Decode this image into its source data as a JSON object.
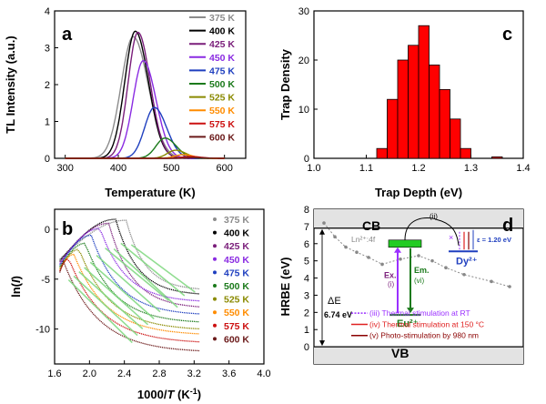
{
  "chart_data": [
    {
      "panel": "a",
      "type": "line",
      "xlabel": "Temperature (K)",
      "ylabel": "TL Intensity (a.u.)",
      "xlim": [
        280,
        640
      ],
      "ylim": [
        0,
        4
      ],
      "xticks": [
        300,
        400,
        500,
        600
      ],
      "yticks": [
        0,
        1,
        2,
        3,
        4
      ],
      "legend_position": "top-right",
      "series": [
        {
          "name": "375 K",
          "color": "#8c8c8c",
          "peak_x": 428,
          "peak_y": 3.3,
          "width": 32,
          "start_x": 375
        },
        {
          "name": "400 K",
          "color": "#000000",
          "peak_x": 432,
          "peak_y": 3.45,
          "width": 28,
          "start_x": 400
        },
        {
          "name": "425 K",
          "color": "#7a1e7a",
          "peak_x": 437,
          "peak_y": 3.42,
          "width": 26,
          "start_x": 425
        },
        {
          "name": "450 K",
          "color": "#8a2be2",
          "peak_x": 447,
          "peak_y": 2.65,
          "width": 27,
          "start_x": 450
        },
        {
          "name": "475 K",
          "color": "#1f3fbf",
          "peak_x": 468,
          "peak_y": 1.38,
          "width": 26,
          "start_x": 475
        },
        {
          "name": "500 K",
          "color": "#1b7a1b",
          "peak_x": 488,
          "peak_y": 0.55,
          "width": 24,
          "start_x": 500
        },
        {
          "name": "525 K",
          "color": "#8a8a00",
          "peak_x": 508,
          "peak_y": 0.22,
          "width": 22,
          "start_x": 525
        },
        {
          "name": "550 K",
          "color": "#ff8c00",
          "peak_x": 522,
          "peak_y": 0.1,
          "width": 22,
          "start_x": 550
        },
        {
          "name": "575 K",
          "color": "#cc1111",
          "peak_x": 535,
          "peak_y": 0.05,
          "width": 22,
          "start_x": 575
        },
        {
          "name": "600 K",
          "color": "#6b1a1a",
          "peak_x": 545,
          "peak_y": 0.02,
          "width": 20,
          "start_x": 600
        }
      ]
    },
    {
      "panel": "c",
      "type": "bar",
      "xlabel": "Trap Depth (eV)",
      "ylabel": "Trap Density",
      "xlim": [
        1.0,
        1.4
      ],
      "ylim": [
        0,
        30
      ],
      "xticks": [
        1.0,
        1.1,
        1.2,
        1.3,
        1.4
      ],
      "yticks": [
        0,
        10,
        20,
        30
      ],
      "bar_color": "#ff0000",
      "bin_width": 0.02,
      "x": [
        1.13,
        1.15,
        1.17,
        1.19,
        1.21,
        1.23,
        1.25,
        1.27,
        1.29,
        1.35
      ],
      "values": [
        2,
        12,
        20,
        23,
        27,
        19,
        14,
        8,
        2,
        0.3
      ]
    },
    {
      "panel": "b",
      "type": "scatter",
      "xlabel": "1000/T (K⁻¹)",
      "ylabel": "ln(I)",
      "xlim": [
        1.6,
        4.0
      ],
      "ylim": [
        -13.5,
        2
      ],
      "xticks": [
        1.6,
        2.0,
        2.4,
        2.8,
        3.2,
        3.6,
        4.0
      ],
      "yticks": [
        -10,
        -5,
        0
      ],
      "legend_position": "right",
      "fit_color": "#7ed87e",
      "series": [
        {
          "name": "375 K",
          "color": "#8c8c8c",
          "peak_x": 2.42,
          "peak_y": 0.9,
          "end_y": -6.0
        },
        {
          "name": "400 K",
          "color": "#000000",
          "peak_x": 2.3,
          "peak_y": 1.0,
          "end_y": -6.5
        },
        {
          "name": "425 K",
          "color": "#7a1e7a",
          "peak_x": 2.22,
          "peak_y": 0.6,
          "end_y": -7.8
        },
        {
          "name": "450 K",
          "color": "#8a2be2",
          "peak_x": 2.12,
          "peak_y": 0.1,
          "end_y": -7.2
        },
        {
          "name": "475 K",
          "color": "#1f3fbf",
          "peak_x": 2.02,
          "peak_y": -0.6,
          "end_y": -8.5
        },
        {
          "name": "500 K",
          "color": "#1b7a1b",
          "peak_x": 1.95,
          "peak_y": -1.4,
          "end_y": -9.3
        },
        {
          "name": "525 K",
          "color": "#8a8a00",
          "peak_x": 1.88,
          "peak_y": -2.0,
          "end_y": -10.0
        },
        {
          "name": "550 K",
          "color": "#ff8c00",
          "peak_x": 1.82,
          "peak_y": -2.5,
          "end_y": -10.5
        },
        {
          "name": "575 K",
          "color": "#cc1111",
          "peak_x": 1.76,
          "peak_y": -2.9,
          "end_y": -11.3
        },
        {
          "name": "600 K",
          "color": "#6b1a1a",
          "peak_x": 1.7,
          "peak_y": -3.2,
          "end_y": -12.2
        }
      ]
    },
    {
      "panel": "d",
      "type": "diagram",
      "ylabel": "HRBE (eV)",
      "ylim": [
        -1,
        8
      ],
      "yticks": [
        -1,
        0,
        1,
        2,
        3,
        4,
        5,
        6,
        7,
        8
      ],
      "cb_label": "CB",
      "vb_label": "VB",
      "ln_label": "Ln²⁺:4f",
      "gap_label": "ΔE",
      "gap_value": "6.74 eV",
      "trap_depth": "ε = 1.20 eV",
      "eu_label": "Eu²⁺",
      "dy_label": "Dy²⁺",
      "ex_label": "Ex.",
      "ex_step": "(i)",
      "em_label": "Em.",
      "em_step": "(vi)",
      "step_ii": "(ii)",
      "ln_curve_y": [
        7.2,
        6.4,
        5.8,
        5.5,
        5.2,
        4.8,
        5.1,
        5.3,
        5.0,
        4.6,
        4.2,
        3.8,
        3.5
      ],
      "legend": [
        {
          "text": "(iii) Thermal stimulation at RT",
          "color": "#9b30ff"
        },
        {
          "text": "(iv) Thermal stimulation at 150 °C",
          "color": "#e02020"
        },
        {
          "text": "(v) Photo-stimulation by 980 nm",
          "color": "#8b0000"
        }
      ]
    }
  ]
}
